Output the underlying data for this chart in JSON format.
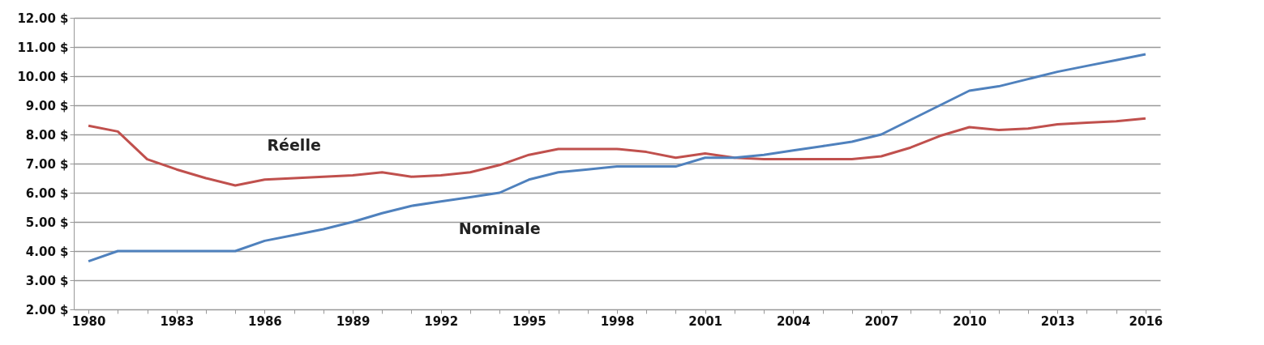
{
  "chart_data": {
    "type": "line",
    "categories": [
      "1980",
      null,
      null,
      "1983",
      null,
      null,
      "1986",
      null,
      null,
      "1989",
      null,
      null,
      "1992",
      null,
      null,
      "1995",
      null,
      null,
      "1998",
      null,
      null,
      "2001",
      null,
      null,
      "2004",
      null,
      null,
      "2007",
      null,
      null,
      "2010",
      null,
      null,
      "2013",
      null,
      null,
      "2016"
    ],
    "series": [
      {
        "name": "Réelle",
        "color": "#c0504d",
        "values": [
          8.3,
          8.1,
          7.15,
          6.8,
          6.5,
          6.25,
          6.45,
          6.5,
          6.55,
          6.6,
          6.7,
          6.55,
          6.6,
          6.7,
          6.95,
          7.3,
          7.5,
          7.5,
          7.5,
          7.4,
          7.2,
          7.35,
          7.2,
          7.15,
          7.15,
          7.15,
          7.15,
          7.25,
          7.55,
          7.95,
          8.25,
          8.15,
          8.2,
          8.35,
          8.4,
          8.45,
          8.55
        ]
      },
      {
        "name": "Nominale",
        "color": "#4f81bd",
        "values": [
          3.65,
          4.0,
          4.0,
          4.0,
          4.0,
          4.0,
          4.35,
          4.55,
          4.75,
          5.0,
          5.3,
          5.55,
          5.7,
          5.85,
          6.0,
          6.45,
          6.7,
          6.8,
          6.9,
          6.9,
          6.9,
          7.2,
          7.2,
          7.3,
          7.45,
          7.6,
          7.75,
          8.0,
          8.5,
          9.0,
          9.5,
          9.65,
          9.9,
          10.15,
          10.35,
          10.55,
          10.75
        ]
      }
    ],
    "ylim": [
      2,
      12
    ],
    "yticks": [
      {
        "value": 2,
        "label": "2.00 $"
      },
      {
        "value": 3,
        "label": "3.00 $"
      },
      {
        "value": 4,
        "label": "4.00 $"
      },
      {
        "value": 5,
        "label": "5.00 $"
      },
      {
        "value": 6,
        "label": "6.00 $"
      },
      {
        "value": 7,
        "label": "7.00 $"
      },
      {
        "value": 8,
        "label": "8.00 $"
      },
      {
        "value": 9,
        "label": "9.00 $"
      },
      {
        "value": 10,
        "label": "10.00 $"
      },
      {
        "value": 11,
        "label": "11.00 $"
      },
      {
        "value": 12,
        "label": "12.00 $"
      }
    ],
    "grid": "y",
    "legend": false,
    "marker": "none",
    "line_style": "solid"
  }
}
